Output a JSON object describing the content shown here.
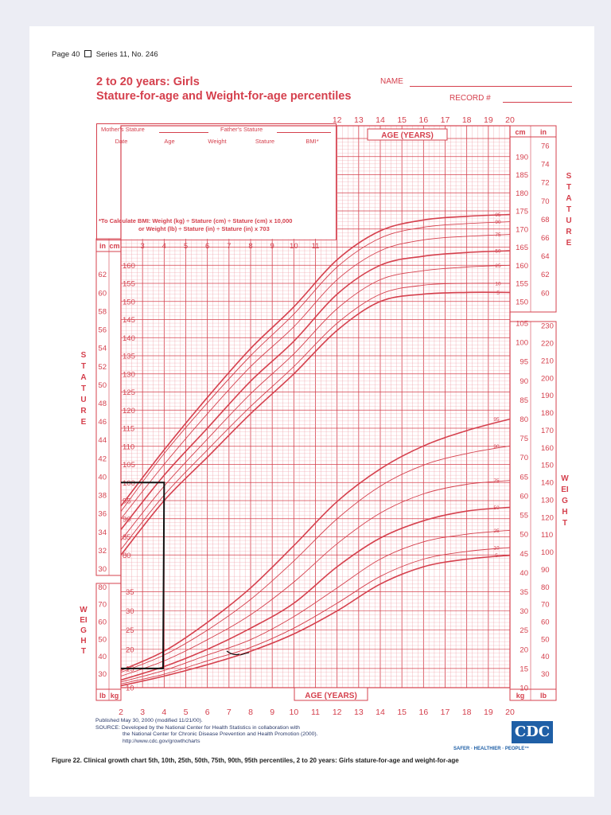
{
  "header": {
    "page_ref": "Page 40",
    "series": "Series 11, No. 246",
    "title_line1": "2 to 20 years: Girls",
    "title_line2": "Stature-for-age and Weight-for-age percentiles",
    "name_label": "NAME",
    "record_label": "RECORD #"
  },
  "record_table": {
    "mothers_stature": "Mother's Stature",
    "fathers_stature": "Father's Stature",
    "columns": [
      "Date",
      "Age",
      "Weight",
      "Stature",
      "BMI*"
    ],
    "bmi_note_line1": "*To Calculate BMI: Weight (kg) ÷ Stature (cm) ÷ Stature (cm) x 10,000",
    "bmi_note_line2": "or Weight (lb) ÷ Stature (in) ÷ Stature (in) x 703"
  },
  "axis_labels": {
    "age_years": "AGE (YEARS)",
    "stature": "STATURE",
    "weight": "WEIGHT",
    "in": "in",
    "cm": "cm",
    "lb": "lb",
    "kg": "kg"
  },
  "footer": {
    "published": "Published May 30, 2000 (modified 11/21/00).",
    "source_line1": "SOURCE: Developed by the National Center for Health Statistics in collaboration with",
    "source_line2": "the National Center for Chronic Disease Prevention and Health Promotion (2000).",
    "source_line3": "http://www.cdc.gov/growthcharts",
    "logo_text": "CDC",
    "slogan": "SAFER · HEALTHIER · PEOPLE™",
    "caption": "Figure 22. Clinical growth chart 5th, 10th, 25th, 50th, 75th, 90th, 95th percentiles, 2 to 20 years: Girls stature-for-age and weight-for-age"
  },
  "colors": {
    "chart_red": "#d5404d",
    "grid_red": "#ee9aa2",
    "annotation": "#111111",
    "logo_blue": "#1f5fa6"
  },
  "chart_data": {
    "type": "line",
    "x_label": "AGE (YEARS)",
    "x_range": [
      2,
      20
    ],
    "x_ticks": [
      2,
      3,
      4,
      5,
      6,
      7,
      8,
      9,
      10,
      11,
      12,
      13,
      14,
      15,
      16,
      17,
      18,
      19,
      20
    ],
    "percentiles": [
      "5",
      "10",
      "25",
      "50",
      "75",
      "90",
      "95"
    ],
    "age_points": [
      2,
      4,
      6,
      8,
      10,
      12,
      14,
      16,
      18,
      20
    ],
    "stature_cm": {
      "y_range": [
        75,
        195
      ],
      "left_cm_ticks": [
        80,
        85,
        90,
        95,
        100,
        105,
        110,
        115,
        120,
        125,
        130,
        135,
        140,
        145,
        150,
        155,
        160
      ],
      "right_cm_ticks": [
        150,
        155,
        160,
        165,
        170,
        175,
        180,
        185,
        190
      ],
      "left_in_ticks": [
        30,
        32,
        34,
        36,
        38,
        40,
        42,
        44,
        46,
        48,
        50,
        52,
        54,
        56,
        58,
        60,
        62
      ],
      "right_in_ticks": [
        60,
        62,
        64,
        66,
        68,
        70,
        72,
        74,
        76
      ],
      "series": [
        {
          "name": "5",
          "values": [
            80,
            95,
            107,
            119,
            130,
            142,
            150,
            152,
            152.5,
            152.5
          ]
        },
        {
          "name": "10",
          "values": [
            81.5,
            96.5,
            109,
            121,
            132,
            144,
            152,
            154.5,
            155,
            155
          ]
        },
        {
          "name": "25",
          "values": [
            84,
            99,
            112,
            124.5,
            135.5,
            148,
            156,
            158.5,
            159.5,
            160
          ]
        },
        {
          "name": "50",
          "values": [
            87,
            102,
            115,
            128,
            139,
            152,
            160,
            162.5,
            163.5,
            164
          ]
        },
        {
          "name": "75",
          "values": [
            90,
            105,
            119,
            132,
            143,
            156,
            164,
            167,
            168,
            168.5
          ]
        },
        {
          "name": "90",
          "values": [
            92,
            108,
            122,
            135,
            146.5,
            159.5,
            167.5,
            170.5,
            171.5,
            172
          ]
        },
        {
          "name": "95",
          "values": [
            93.5,
            109,
            123.5,
            137,
            148.5,
            161.5,
            169.5,
            172.5,
            173.5,
            174
          ]
        }
      ]
    },
    "weight_kg": {
      "y_range": [
        10,
        105
      ],
      "left_kg_ticks": [
        10,
        15,
        20,
        25,
        30,
        35
      ],
      "right_kg_ticks": [
        10,
        15,
        20,
        25,
        30,
        35,
        40,
        45,
        50,
        55,
        60,
        65,
        70,
        75,
        80,
        85,
        90,
        95,
        100,
        105
      ],
      "left_lb_ticks": [
        30,
        40,
        50,
        60,
        70,
        80
      ],
      "right_lb_ticks": [
        30,
        40,
        50,
        60,
        70,
        80,
        90,
        100,
        110,
        120,
        130,
        140,
        150,
        160,
        170,
        180,
        190,
        200,
        210,
        220,
        230
      ],
      "series": [
        {
          "name": "5",
          "values": [
            10.5,
            13,
            16,
            19.5,
            24,
            30,
            37,
            41.5,
            43.5,
            44.5
          ]
        },
        {
          "name": "10",
          "values": [
            11,
            13.5,
            17,
            20.5,
            25.5,
            32,
            39,
            43.5,
            45.5,
            46.5
          ]
        },
        {
          "name": "25",
          "values": [
            11.5,
            14.5,
            18.5,
            22.5,
            28.5,
            36,
            43.5,
            48,
            50,
            51
          ]
        },
        {
          "name": "50",
          "values": [
            12,
            15.5,
            20,
            25.5,
            32,
            41.5,
            49,
            53.5,
            56,
            57
          ]
        },
        {
          "name": "75",
          "values": [
            13,
            17,
            22.5,
            29,
            37.5,
            47.5,
            55.5,
            60.5,
            63,
            64
          ]
        },
        {
          "name": "90",
          "values": [
            14,
            18.5,
            25,
            33,
            43,
            54,
            62.5,
            68,
            71,
            73
          ]
        },
        {
          "name": "95",
          "values": [
            14.5,
            19.5,
            27,
            36,
            47,
            58.5,
            67,
            73,
            77,
            80
          ]
        }
      ]
    },
    "annotations": [
      {
        "type": "bracket",
        "label": "hand-drawn bracket at stature 100 cm and weight 15 kg near age 4"
      }
    ]
  }
}
